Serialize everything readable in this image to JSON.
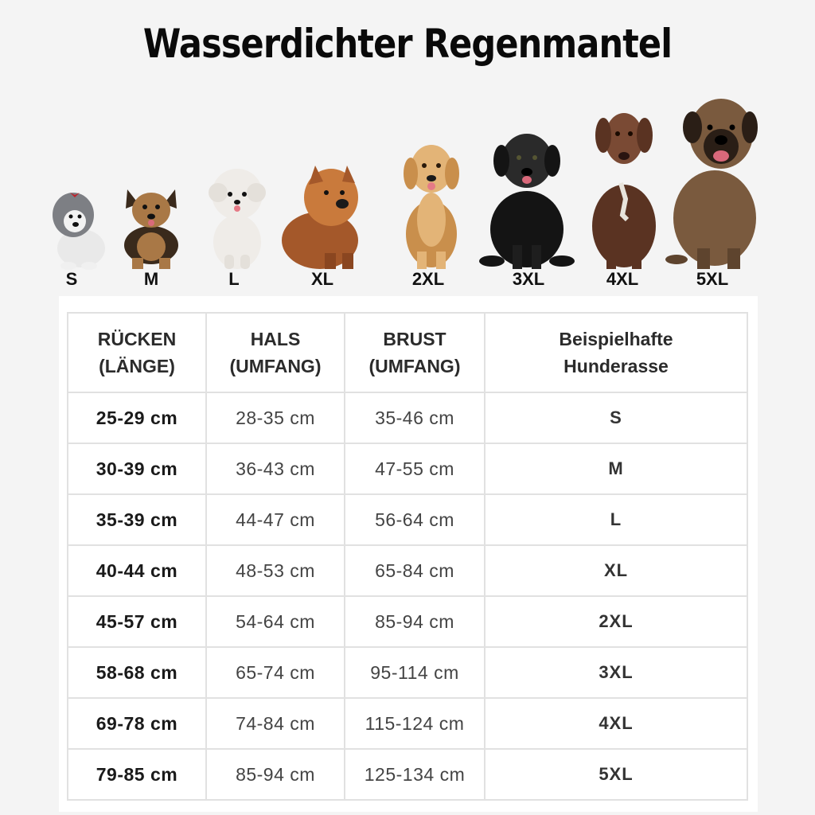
{
  "title": "Wasserdichter Regenmantel",
  "dogs": [
    {
      "size": "S",
      "icon": "maltese-dog-icon",
      "colors": [
        "#7d7f84",
        "#e9e9e9"
      ]
    },
    {
      "size": "M",
      "icon": "yorkshire-terrier-icon",
      "colors": [
        "#3a2a1c",
        "#a97846"
      ]
    },
    {
      "size": "L",
      "icon": "bichon-dog-icon",
      "colors": [
        "#efece8",
        "#d9d4cd"
      ]
    },
    {
      "size": "XL",
      "icon": "chow-chow-dog-icon",
      "colors": [
        "#a4582a",
        "#c97a3c"
      ]
    },
    {
      "size": "2XL",
      "icon": "golden-retriever-icon",
      "colors": [
        "#c98f4c",
        "#e3b477"
      ]
    },
    {
      "size": "3XL",
      "icon": "black-labrador-icon",
      "colors": [
        "#141414",
        "#2a2a2a"
      ]
    },
    {
      "size": "4XL",
      "icon": "german-shorthaired-pointer-icon",
      "colors": [
        "#5a3322",
        "#7a4a34"
      ]
    },
    {
      "size": "5XL",
      "icon": "mastiff-dog-icon",
      "colors": [
        "#7a5a3e",
        "#4a3526"
      ]
    }
  ],
  "table": {
    "headers": {
      "back": [
        "RÜCKEN",
        "(LÄNGE)"
      ],
      "neck": [
        "HALS",
        "(UMFANG)"
      ],
      "chest": [
        "BRUST",
        "(UMFANG)"
      ],
      "breed": [
        "Beispielhafte",
        "Hunderasse"
      ]
    },
    "rows": [
      {
        "back": "25-29 cm",
        "neck": "28-35 cm",
        "chest": "35-46 cm",
        "size": "S"
      },
      {
        "back": "30-39 cm",
        "neck": "36-43 cm",
        "chest": "47-55 cm",
        "size": "M"
      },
      {
        "back": "35-39 cm",
        "neck": "44-47 cm",
        "chest": "56-64 cm",
        "size": "L"
      },
      {
        "back": "40-44 cm",
        "neck": "48-53 cm",
        "chest": "65-84 cm",
        "size": "XL"
      },
      {
        "back": "45-57 cm",
        "neck": "54-64 cm",
        "chest": "85-94 cm",
        "size": "2XL"
      },
      {
        "back": "58-68 cm",
        "neck": "65-74 cm",
        "chest": "95-114 cm",
        "size": "3XL"
      },
      {
        "back": "69-78 cm",
        "neck": "74-84 cm",
        "chest": "115-124 cm",
        "size": "4XL"
      },
      {
        "back": "79-85 cm",
        "neck": "85-94 cm",
        "chest": "125-134 cm",
        "size": "5XL"
      }
    ]
  }
}
